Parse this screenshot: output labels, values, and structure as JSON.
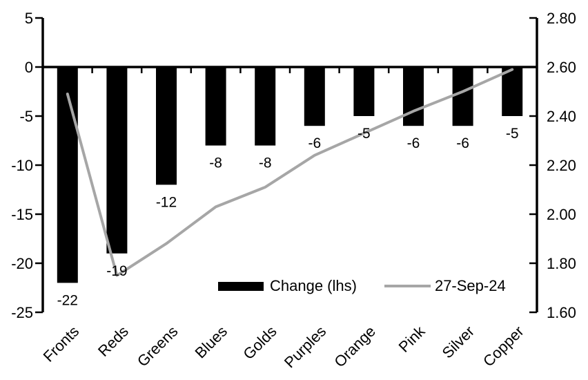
{
  "chart_data": {
    "type": "combo-bar-line",
    "title": "",
    "categories": [
      "Fronts",
      "Reds",
      "Greens",
      "Blues",
      "Golds",
      "Purples",
      "Orange",
      "Pink",
      "Silver",
      "Copper"
    ],
    "series": [
      {
        "name": "Change (lhs)",
        "type": "bar",
        "axis": "left",
        "color": "#000000",
        "values": [
          -22,
          -19,
          -12,
          -8,
          -8,
          -6,
          -5,
          -6,
          -6,
          -5
        ],
        "data_labels": [
          "-22",
          "-19",
          "-12",
          "-8",
          "-8",
          "-6",
          "-5",
          "-6",
          "-6",
          "-5"
        ]
      },
      {
        "name": "27-Sep-24",
        "type": "line",
        "axis": "right",
        "color": "#a6a6a6",
        "values": [
          2.49,
          1.75,
          1.88,
          2.03,
          2.11,
          2.24,
          2.33,
          2.42,
          2.5,
          2.59
        ]
      }
    ],
    "left_axis": {
      "min": -25,
      "max": 5,
      "step": 5,
      "tick_labels": [
        "5",
        "0",
        "-5",
        "-10",
        "-15",
        "-20",
        "-25"
      ]
    },
    "right_axis": {
      "min": 1.6,
      "max": 2.8,
      "step": 0.2,
      "tick_labels": [
        "2.80",
        "2.60",
        "2.40",
        "2.20",
        "2.00",
        "1.80",
        "1.60"
      ]
    },
    "grid": false,
    "legend_position": "bottom-center",
    "axis_color": "#000000",
    "background": "#ffffff"
  }
}
